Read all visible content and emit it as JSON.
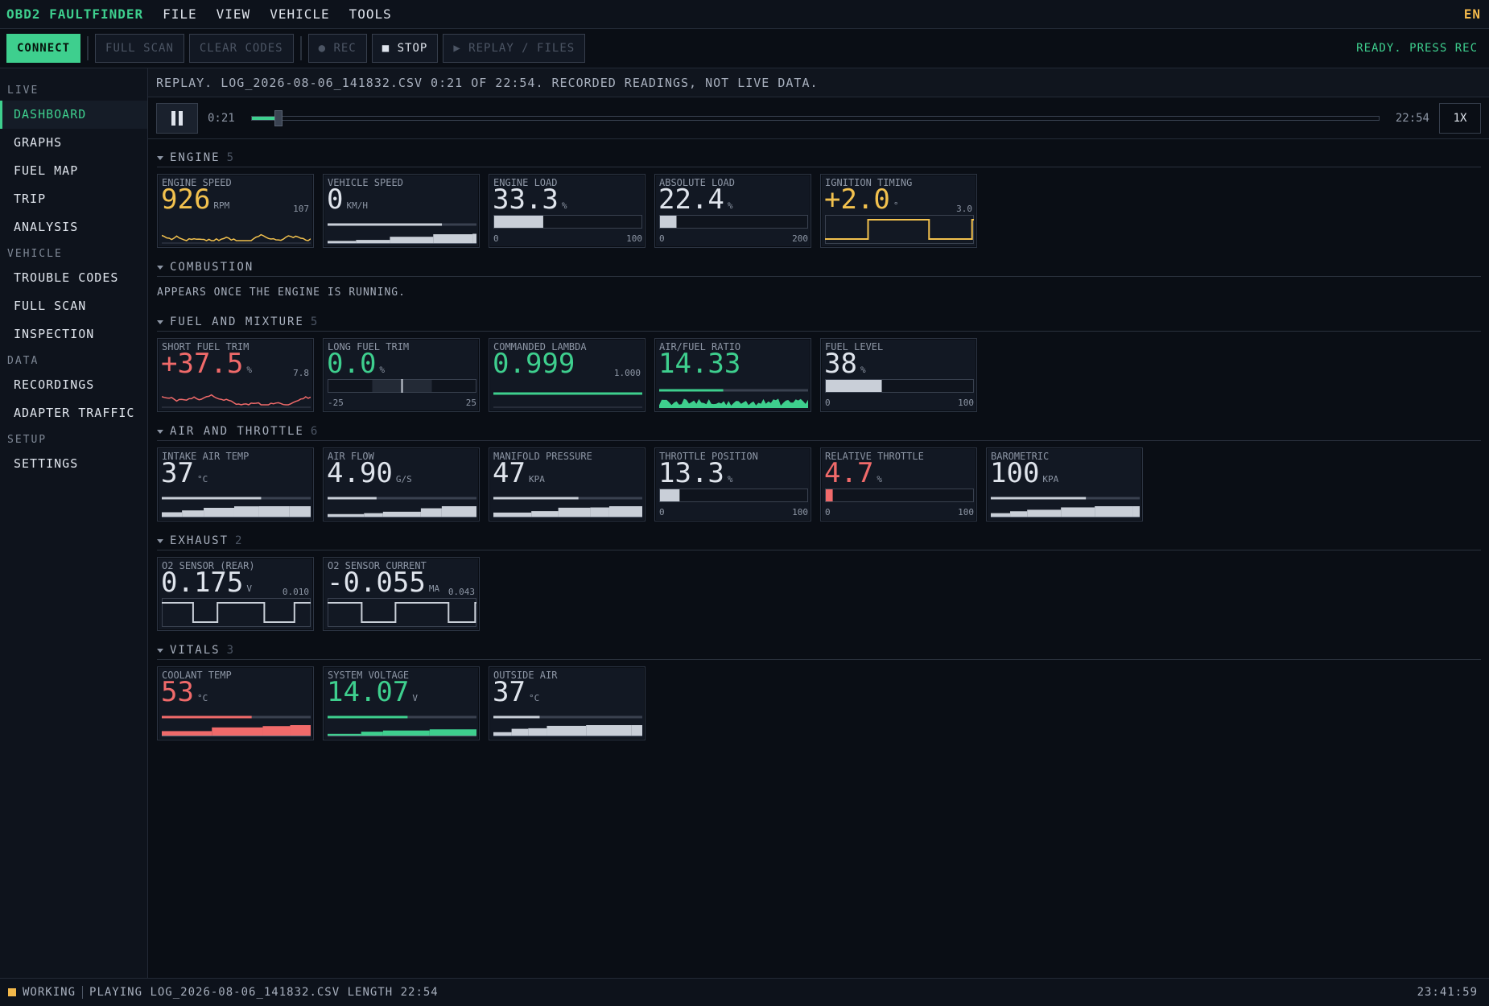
{
  "app": {
    "title": "OBD2 FAULTFINDER",
    "menu": [
      "FILE",
      "VIEW",
      "VEHICLE",
      "TOOLS"
    ],
    "language": "EN"
  },
  "toolbar": {
    "buttons": [
      "CONNECT",
      "FULL SCAN",
      "CLEAR CODES",
      "● REC",
      "■ STOP",
      "▶ REPLAY / FILES"
    ],
    "status": "READY. PRESS REC"
  },
  "sidebar": [
    {
      "heading": "LIVE",
      "items": [
        "DASHBOARD",
        "GRAPHS",
        "FUEL MAP",
        "TRIP",
        "ANALYSIS"
      ]
    },
    {
      "heading": "VEHICLE",
      "items": [
        "TROUBLE CODES",
        "FULL SCAN",
        "INSPECTION"
      ]
    },
    {
      "heading": "DATA",
      "items": [
        "RECORDINGS",
        "ADAPTER TRAFFIC"
      ]
    },
    {
      "heading": "SETUP",
      "items": [
        "SETTINGS"
      ]
    }
  ],
  "replay": {
    "banner": "REPLAY. LOG_2026-08-06_141832.CSV 0:21 OF 22:54. RECORDED READINGS, NOT LIVE DATA.",
    "position": "0:21",
    "length": "22:54",
    "speed": "1X"
  },
  "sections": [
    {
      "title": "ENGINE",
      "count": 5,
      "cards": [
        {
          "label": "ENGINE SPEED",
          "value": "926",
          "unit": "RPM",
          "color": "#f2c14e",
          "note": "107",
          "kind": "spark"
        },
        {
          "label": "VEHICLE SPEED",
          "value": "0",
          "unit": "KM/H",
          "color": "#dfe4ec",
          "kind": "trend"
        },
        {
          "label": "ENGINE LOAD",
          "value": "33.3",
          "unit": "%",
          "color": "#dfe4ec",
          "kind": "gauge",
          "scale": [
            0,
            100
          ]
        },
        {
          "label": "ABSOLUTE LOAD",
          "value": "22.4",
          "unit": "%",
          "color": "#dfe4ec",
          "kind": "gauge",
          "scale": [
            0,
            200
          ]
        },
        {
          "label": "IGNITION TIMING",
          "value": "+2.0",
          "unit": "°",
          "color": "#f2c14e",
          "note": "3.0",
          "kind": "step"
        }
      ]
    },
    {
      "title": "COMBUSTION",
      "note": "APPEARS ONCE THE ENGINE IS RUNNING."
    },
    {
      "title": "FUEL AND MIXTURE",
      "count": 5,
      "cards": [
        {
          "label": "SHORT FUEL TRIM",
          "value": "+37.5",
          "unit": "%",
          "color": "#f06a6a",
          "note": "7.8",
          "kind": "spark"
        },
        {
          "label": "LONG FUEL TRIM",
          "value": "0.0",
          "unit": "%",
          "color": "#3ecf8e",
          "kind": "center",
          "scale": [
            -25,
            25
          ]
        },
        {
          "label": "COMMANDED LAMBDA",
          "value": "0.999",
          "color": "#3ecf8e",
          "note": "1.000",
          "kind": "flat"
        },
        {
          "label": "AIR/FUEL RATIO",
          "value": "14.33",
          "color": "#3ecf8e",
          "kind": "area"
        },
        {
          "label": "FUEL LEVEL",
          "value": "38",
          "unit": "%",
          "color": "#dfe4ec",
          "kind": "gauge",
          "scale": [
            0,
            100
          ]
        }
      ]
    },
    {
      "title": "AIR AND THROTTLE",
      "count": 6,
      "cards": [
        {
          "label": "INTAKE AIR TEMP",
          "value": "37",
          "unit": "°C",
          "color": "#dfe4ec",
          "kind": "trend"
        },
        {
          "label": "AIR FLOW",
          "value": "4.90",
          "unit": "G/S",
          "color": "#dfe4ec",
          "kind": "trend"
        },
        {
          "label": "MANIFOLD PRESSURE",
          "value": "47",
          "unit": "KPA",
          "color": "#dfe4ec",
          "kind": "trend"
        },
        {
          "label": "THROTTLE POSITION",
          "value": "13.3",
          "unit": "%",
          "color": "#dfe4ec",
          "kind": "gauge",
          "scale": [
            0,
            100
          ]
        },
        {
          "label": "RELATIVE THROTTLE",
          "value": "4.7",
          "unit": "%",
          "color": "#f06a6a",
          "kind": "gauge",
          "scale": [
            0,
            100
          ]
        },
        {
          "label": "BAROMETRIC",
          "value": "100",
          "unit": "KPA",
          "color": "#dfe4ec",
          "kind": "trend"
        }
      ]
    },
    {
      "title": "EXHAUST",
      "count": 2,
      "cards": [
        {
          "label": "O2 SENSOR (REAR)",
          "value": "0.175",
          "unit": "V",
          "color": "#dfe4ec",
          "note": "0.010",
          "kind": "step"
        },
        {
          "label": "O2 SENSOR CURRENT",
          "value": "-0.055",
          "unit": "MA",
          "color": "#dfe4ec",
          "note": "0.043",
          "kind": "step"
        }
      ]
    },
    {
      "title": "VITALS",
      "count": 3,
      "cards": [
        {
          "label": "COOLANT TEMP",
          "value": "53",
          "unit": "°C",
          "color": "#f06a6a",
          "kind": "trend"
        },
        {
          "label": "SYSTEM VOLTAGE",
          "value": "14.07",
          "unit": "V",
          "color": "#3ecf8e",
          "kind": "trend"
        },
        {
          "label": "OUTSIDE AIR",
          "value": "37",
          "unit": "°C",
          "color": "#dfe4ec",
          "kind": "trend"
        }
      ]
    }
  ],
  "statusbar": {
    "state": "WORKING",
    "message": "PLAYING LOG_2026-08-06_141832.CSV LENGTH 22:54",
    "clock": "23:41:59"
  }
}
